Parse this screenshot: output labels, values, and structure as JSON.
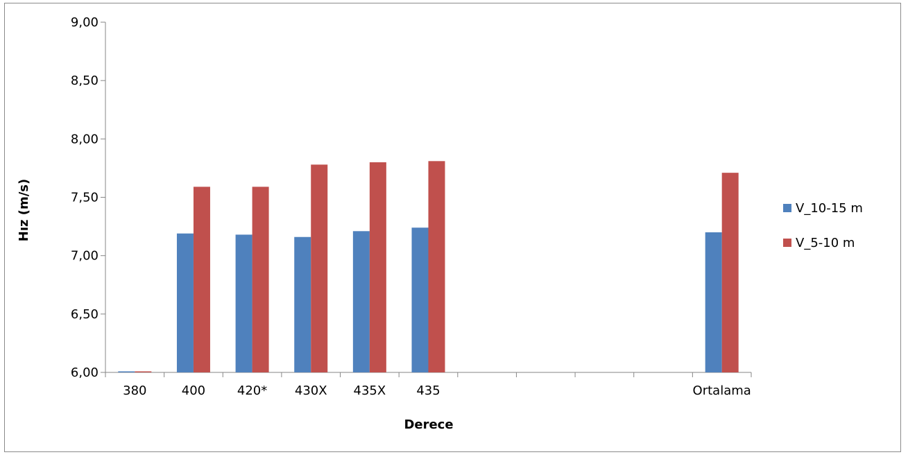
{
  "chart_data": {
    "type": "bar",
    "title": "",
    "xlabel": "Derece",
    "ylabel": "Hız (m/s)",
    "ylim": [
      6.0,
      9.0
    ],
    "ytick_values": [
      6.0,
      6.5,
      7.0,
      7.5,
      8.0,
      8.5,
      9.0
    ],
    "ytick_labels": [
      "6,00",
      "6,50",
      "7,00",
      "7,50",
      "8,00",
      "8,50",
      "9,00"
    ],
    "categories": [
      "380",
      "400",
      "420*",
      "430X",
      "435X",
      "435",
      "",
      "",
      "",
      "",
      "Ortalama"
    ],
    "series": [
      {
        "name": "V_10-15 m",
        "color": "#4f81bd",
        "values": [
          6.0,
          7.19,
          7.18,
          7.16,
          7.21,
          7.24,
          null,
          null,
          null,
          null,
          7.2
        ]
      },
      {
        "name": "V_5-10 m",
        "color": "#c0504d",
        "values": [
          6.0,
          7.59,
          7.59,
          7.78,
          7.8,
          7.81,
          null,
          null,
          null,
          null,
          7.71
        ]
      }
    ],
    "grid": false,
    "legend_position": "right"
  }
}
